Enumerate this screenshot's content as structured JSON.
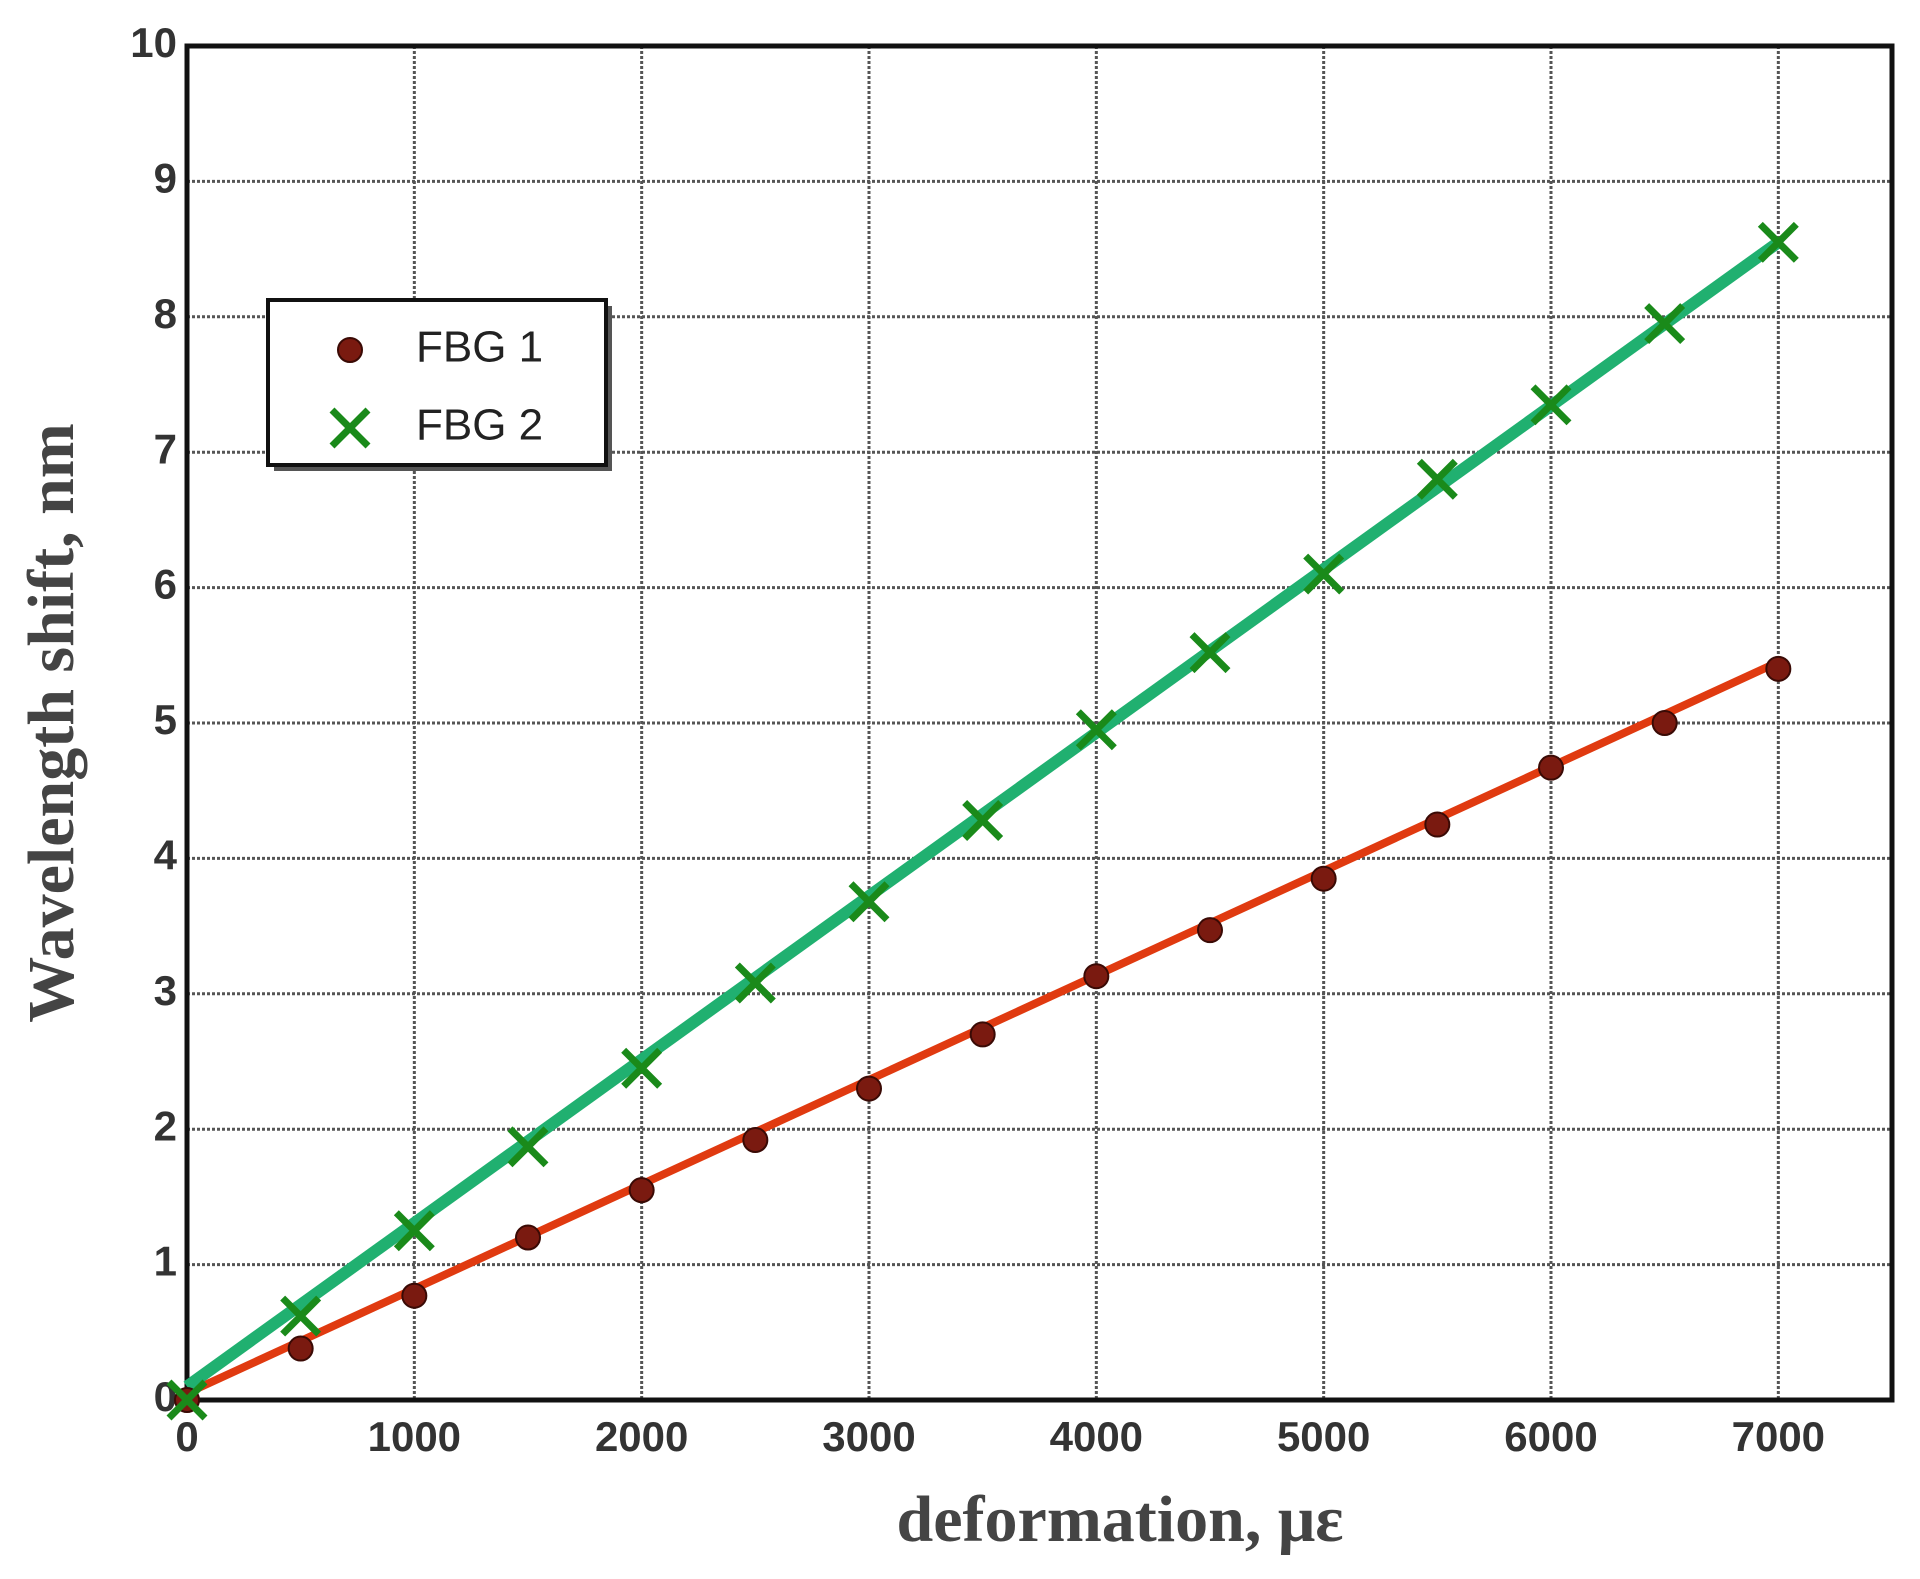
{
  "chart_data": {
    "type": "scatter",
    "xlabel": "deformation, με",
    "ylabel": "Wavelength shift, nm",
    "x": [
      0,
      500,
      1000,
      1500,
      2000,
      2500,
      3000,
      3500,
      4000,
      4500,
      5000,
      5500,
      6000,
      6500,
      7000
    ],
    "series": [
      {
        "name": "FBG 1",
        "color": "#7a1a10",
        "marker": "circle",
        "values": [
          0,
          0.38,
          0.77,
          1.2,
          1.55,
          1.92,
          2.3,
          2.7,
          3.13,
          3.47,
          3.85,
          4.25,
          4.67,
          5.0,
          5.4
        ]
      },
      {
        "name": "FBG 2",
        "color": "#1a8a1a",
        "marker": "x",
        "values": [
          0,
          0.62,
          1.25,
          1.87,
          2.45,
          3.08,
          3.68,
          4.28,
          4.95,
          5.52,
          6.1,
          6.8,
          7.35,
          7.95,
          8.55
        ]
      }
    ],
    "fit_lines": [
      {
        "color": "#e03a10",
        "x": [
          0,
          7000
        ],
        "values": [
          0.05,
          5.45
        ]
      },
      {
        "color": "#20b070",
        "x": [
          0,
          7000
        ],
        "values": [
          0.1,
          8.55
        ]
      }
    ],
    "xlim": [
      0,
      7500
    ],
    "ylim": [
      0,
      10
    ],
    "xticks": [
      0,
      1000,
      2000,
      3000,
      4000,
      5000,
      6000,
      7000
    ],
    "yticks": [
      0,
      1,
      2,
      3,
      4,
      5,
      6,
      7,
      8,
      9,
      10
    ],
    "grid": true,
    "legend": "upper left"
  }
}
